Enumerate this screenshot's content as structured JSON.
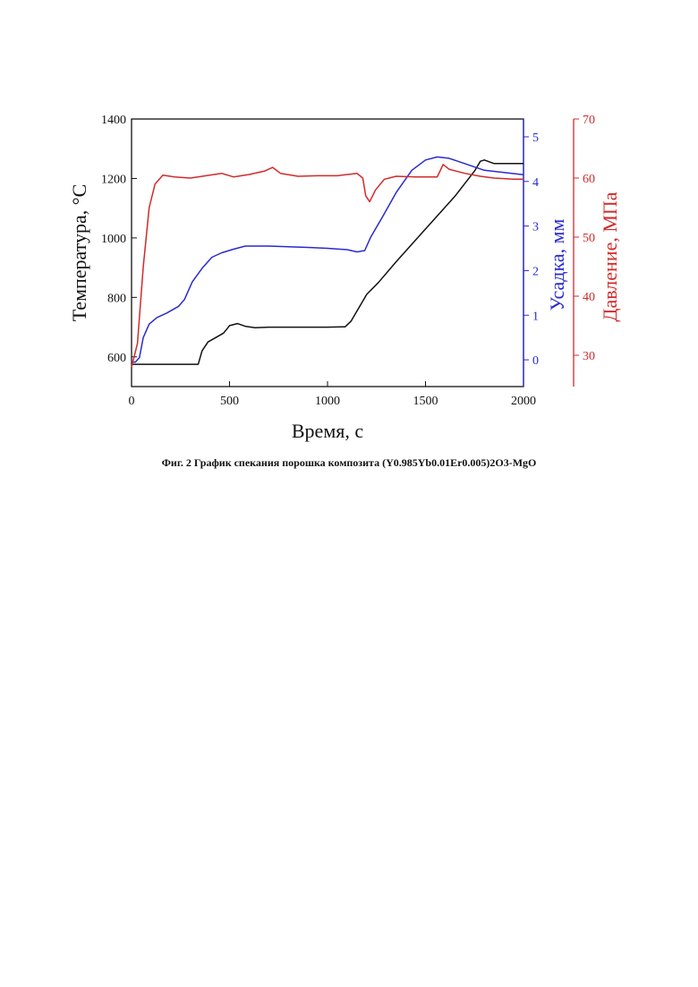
{
  "caption": "Фиг. 2 График спекания порошка композита (Y0.985Yb0.01Er0.005)2O3-MgO",
  "colors": {
    "temperature": "#111111",
    "shrinkage": "#2a2ad0",
    "pressure": "#d12a2a",
    "axis": "#111111"
  },
  "chart_data": {
    "type": "line",
    "xlabel": "Время, с",
    "xlim": [
      0,
      2000
    ],
    "x_ticks": [
      0,
      500,
      1000,
      1500,
      2000
    ],
    "axes": {
      "left": {
        "label": "Температура, °C",
        "lim": [
          500,
          1400
        ],
        "ticks": [
          600,
          800,
          1000,
          1200,
          1400
        ],
        "color": "#111111"
      },
      "right1": {
        "label": "Усадка, мм",
        "lim": [
          -0.6,
          5.4
        ],
        "ticks": [
          0,
          1,
          2,
          3,
          4,
          5
        ],
        "color": "#2a2ad0"
      },
      "right2": {
        "label": "Давление, МПа",
        "lim": [
          24.7,
          70
        ],
        "ticks": [
          30,
          40,
          50,
          60,
          70
        ],
        "color": "#d12a2a"
      }
    },
    "series": [
      {
        "axis": "left",
        "points": [
          [
            0,
            575
          ],
          [
            340,
            575
          ],
          [
            360,
            620
          ],
          [
            390,
            650
          ],
          [
            430,
            665
          ],
          [
            470,
            680
          ],
          [
            500,
            705
          ],
          [
            540,
            712
          ],
          [
            580,
            703
          ],
          [
            630,
            698
          ],
          [
            700,
            700
          ],
          [
            800,
            700
          ],
          [
            900,
            700
          ],
          [
            1000,
            700
          ],
          [
            1090,
            701
          ],
          [
            1120,
            720
          ],
          [
            1160,
            765
          ],
          [
            1200,
            810
          ],
          [
            1260,
            850
          ],
          [
            1350,
            920
          ],
          [
            1500,
            1030
          ],
          [
            1650,
            1140
          ],
          [
            1750,
            1225
          ],
          [
            1780,
            1258
          ],
          [
            1800,
            1262
          ],
          [
            1850,
            1250
          ],
          [
            1900,
            1250
          ],
          [
            2000,
            1250
          ]
        ]
      },
      {
        "axis": "right1",
        "points": [
          [
            0,
            -0.05
          ],
          [
            20,
            -0.05
          ],
          [
            40,
            0.05
          ],
          [
            60,
            0.5
          ],
          [
            90,
            0.8
          ],
          [
            130,
            0.95
          ],
          [
            180,
            1.05
          ],
          [
            240,
            1.2
          ],
          [
            270,
            1.35
          ],
          [
            310,
            1.75
          ],
          [
            360,
            2.05
          ],
          [
            410,
            2.3
          ],
          [
            460,
            2.4
          ],
          [
            520,
            2.48
          ],
          [
            580,
            2.55
          ],
          [
            700,
            2.55
          ],
          [
            900,
            2.52
          ],
          [
            1000,
            2.5
          ],
          [
            1100,
            2.47
          ],
          [
            1150,
            2.42
          ],
          [
            1190,
            2.45
          ],
          [
            1220,
            2.75
          ],
          [
            1280,
            3.2
          ],
          [
            1350,
            3.75
          ],
          [
            1430,
            4.25
          ],
          [
            1500,
            4.48
          ],
          [
            1560,
            4.55
          ],
          [
            1620,
            4.52
          ],
          [
            1700,
            4.4
          ],
          [
            1800,
            4.25
          ],
          [
            1900,
            4.2
          ],
          [
            2000,
            4.15
          ]
        ]
      },
      {
        "axis": "right2",
        "points": [
          [
            0,
            28
          ],
          [
            30,
            32
          ],
          [
            60,
            45
          ],
          [
            90,
            55
          ],
          [
            120,
            59
          ],
          [
            160,
            60.5
          ],
          [
            220,
            60.2
          ],
          [
            300,
            60
          ],
          [
            380,
            60.4
          ],
          [
            460,
            60.8
          ],
          [
            520,
            60.2
          ],
          [
            600,
            60.6
          ],
          [
            680,
            61.2
          ],
          [
            720,
            61.8
          ],
          [
            760,
            60.8
          ],
          [
            850,
            60.3
          ],
          [
            950,
            60.4
          ],
          [
            1050,
            60.4
          ],
          [
            1150,
            60.8
          ],
          [
            1180,
            60
          ],
          [
            1195,
            57
          ],
          [
            1215,
            56
          ],
          [
            1245,
            58
          ],
          [
            1290,
            59.8
          ],
          [
            1350,
            60.3
          ],
          [
            1450,
            60.2
          ],
          [
            1560,
            60.2
          ],
          [
            1590,
            62.3
          ],
          [
            1620,
            61.5
          ],
          [
            1700,
            60.8
          ],
          [
            1780,
            60.3
          ],
          [
            1850,
            60
          ],
          [
            1950,
            59.8
          ],
          [
            2000,
            59.8
          ]
        ]
      }
    ]
  }
}
